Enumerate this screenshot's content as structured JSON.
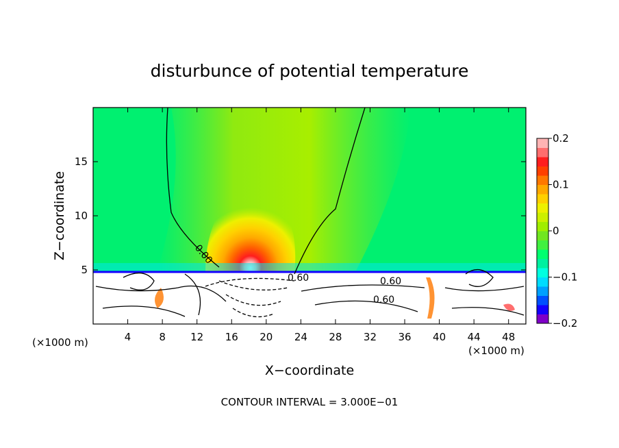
{
  "chart_data": {
    "type": "heatmap",
    "title": "disturbunce of potential temperature",
    "xlabel": "X−coordinate",
    "ylabel": "Z−coordinate",
    "x_unit_left": "(×1000 m)",
    "x_unit_right": "(×1000 m)",
    "xlim": [
      0,
      50
    ],
    "ylim": [
      0,
      20
    ],
    "x_ticks": [
      4,
      8,
      12,
      16,
      20,
      24,
      28,
      32,
      36,
      40,
      44,
      48
    ],
    "x_tick_labels": [
      "4",
      "8",
      "12",
      "16",
      "20",
      "24",
      "28",
      "32",
      "36",
      "40",
      "44",
      "48"
    ],
    "y_ticks": [
      5,
      10,
      15
    ],
    "y_tick_labels": [
      "5",
      "10",
      "15"
    ],
    "contour_labels": [
      "0.00",
      "0.60",
      "0.60",
      "0.60"
    ],
    "colorbar": {
      "min": -0.2,
      "max": 0.2,
      "tick_values": [
        0.2,
        0.1,
        0,
        -0.1,
        -0.2
      ],
      "tick_labels": [
        "0.2",
        "0.1",
        "0",
        "−0.1",
        "−0.2"
      ],
      "colors": [
        "#7f00c8",
        "#1400ff",
        "#0050ff",
        "#00a0ff",
        "#00dcff",
        "#00ffe0",
        "#00f0a0",
        "#00ff70",
        "#40f040",
        "#70e620",
        "#a0ee00",
        "#ccf000",
        "#eef000",
        "#ffd000",
        "#ffa800",
        "#ff7800",
        "#ff4000",
        "#ff1e1e",
        "#ff6e6e",
        "#ffb4b4"
      ]
    },
    "footer": "CONTOUR INTERVAL = 3.000E−01"
  }
}
